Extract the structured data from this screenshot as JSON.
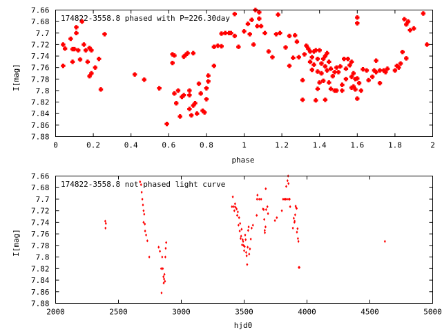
{
  "chart_data": [
    {
      "type": "scatter",
      "title": "174822-3558.8 phased with P=226.30day",
      "xlabel": "phase",
      "ylabel": "I[mag]",
      "xlim": [
        0,
        2
      ],
      "ylim": [
        7.66,
        7.88
      ],
      "y_inverted": true,
      "xticks": [
        "0",
        "0.2",
        "0.4",
        "0.6",
        "0.8",
        "1",
        "1.2",
        "1.4",
        "1.6",
        "1.8",
        "2"
      ],
      "yticks": [
        "7.66",
        "7.68",
        "7.7",
        "7.72",
        "7.74",
        "7.76",
        "7.78",
        "7.8",
        "7.82",
        "7.84",
        "7.86",
        "7.88"
      ],
      "grid": false,
      "marker": "filled-plus",
      "color": "#ff0000",
      "points": [
        [
          0.04,
          7.72
        ],
        [
          0.04,
          7.757
        ],
        [
          0.05,
          7.727
        ],
        [
          0.08,
          7.71
        ],
        [
          0.09,
          7.728
        ],
        [
          0.09,
          7.75
        ],
        [
          0.1,
          7.728
        ],
        [
          0.11,
          7.69
        ],
        [
          0.11,
          7.7
        ],
        [
          0.12,
          7.73
        ],
        [
          0.13,
          7.746
        ],
        [
          0.14,
          7.68
        ],
        [
          0.15,
          7.72
        ],
        [
          0.16,
          7.73
        ],
        [
          0.17,
          7.75
        ],
        [
          0.18,
          7.726
        ],
        [
          0.18,
          7.775
        ],
        [
          0.19,
          7.73
        ],
        [
          0.19,
          7.77
        ],
        [
          0.21,
          7.76
        ],
        [
          0.23,
          7.745
        ],
        [
          0.24,
          7.798
        ],
        [
          0.26,
          7.702
        ],
        [
          0.42,
          7.772
        ],
        [
          0.47,
          7.781
        ],
        [
          0.55,
          7.796
        ],
        [
          0.59,
          7.858
        ],
        [
          0.62,
          7.737
        ],
        [
          0.62,
          7.752
        ],
        [
          0.63,
          7.739
        ],
        [
          0.63,
          7.805
        ],
        [
          0.64,
          7.822
        ],
        [
          0.65,
          7.8
        ],
        [
          0.66,
          7.845
        ],
        [
          0.67,
          7.811
        ],
        [
          0.68,
          7.741
        ],
        [
          0.68,
          7.808
        ],
        [
          0.69,
          7.738
        ],
        [
          0.7,
          7.735
        ],
        [
          0.71,
          7.8
        ],
        [
          0.71,
          7.808
        ],
        [
          0.71,
          7.832
        ],
        [
          0.72,
          7.843
        ],
        [
          0.73,
          7.826
        ],
        [
          0.73,
          7.735
        ],
        [
          0.74,
          7.822
        ],
        [
          0.75,
          7.84
        ],
        [
          0.76,
          7.788
        ],
        [
          0.77,
          7.805
        ],
        [
          0.78,
          7.835
        ],
        [
          0.79,
          7.838
        ],
        [
          0.8,
          7.815
        ],
        [
          0.8,
          7.796
        ],
        [
          0.81,
          7.784
        ],
        [
          0.81,
          7.774
        ],
        [
          0.84,
          7.757
        ],
        [
          0.84,
          7.724
        ],
        [
          0.86,
          7.722
        ],
        [
          0.88,
          7.723
        ],
        [
          0.88,
          7.701
        ],
        [
          0.9,
          7.7
        ],
        [
          0.92,
          7.7
        ],
        [
          0.93,
          7.7
        ],
        [
          0.95,
          7.667
        ],
        [
          0.95,
          7.705
        ],
        [
          0.97,
          7.724
        ],
        [
          1.0,
          7.697
        ],
        [
          1.02,
          7.684
        ],
        [
          1.03,
          7.702
        ],
        [
          1.04,
          7.677
        ],
        [
          1.05,
          7.72
        ],
        [
          1.06,
          7.66
        ],
        [
          1.07,
          7.688
        ],
        [
          1.08,
          7.664
        ],
        [
          1.08,
          7.675
        ],
        [
          1.09,
          7.688
        ],
        [
          1.11,
          7.7
        ],
        [
          1.13,
          7.732
        ],
        [
          1.15,
          7.742
        ],
        [
          1.17,
          7.702
        ],
        [
          1.18,
          7.668
        ],
        [
          1.19,
          7.7
        ],
        [
          1.22,
          7.725
        ],
        [
          1.24,
          7.705
        ],
        [
          1.24,
          7.757
        ],
        [
          1.26,
          7.743
        ],
        [
          1.27,
          7.704
        ],
        [
          1.28,
          7.715
        ],
        [
          1.29,
          7.742
        ],
        [
          1.31,
          7.782
        ],
        [
          1.31,
          7.816
        ],
        [
          1.32,
          7.737
        ],
        [
          1.33,
          7.722
        ],
        [
          1.34,
          7.727
        ],
        [
          1.35,
          7.732
        ],
        [
          1.35,
          7.75
        ],
        [
          1.36,
          7.742
        ],
        [
          1.36,
          7.764
        ],
        [
          1.37,
          7.732
        ],
        [
          1.37,
          7.755
        ],
        [
          1.38,
          7.73
        ],
        [
          1.38,
          7.817
        ],
        [
          1.39,
          7.745
        ],
        [
          1.39,
          7.767
        ],
        [
          1.39,
          7.797
        ],
        [
          1.4,
          7.73
        ],
        [
          1.4,
          7.786
        ],
        [
          1.41,
          7.753
        ],
        [
          1.41,
          7.77
        ],
        [
          1.42,
          7.745
        ],
        [
          1.42,
          7.783
        ],
        [
          1.43,
          7.74
        ],
        [
          1.43,
          7.758
        ],
        [
          1.43,
          7.816
        ],
        [
          1.44,
          7.735
        ],
        [
          1.44,
          7.765
        ],
        [
          1.45,
          7.75
        ],
        [
          1.45,
          7.786
        ],
        [
          1.46,
          7.762
        ],
        [
          1.46,
          7.797
        ],
        [
          1.47,
          7.775
        ],
        [
          1.48,
          7.768
        ],
        [
          1.48,
          7.8
        ],
        [
          1.49,
          7.76
        ],
        [
          1.49,
          7.8
        ],
        [
          1.5,
          7.768
        ],
        [
          1.51,
          7.758
        ],
        [
          1.52,
          7.79
        ],
        [
          1.52,
          7.8
        ],
        [
          1.53,
          7.745
        ],
        [
          1.54,
          7.762
        ],
        [
          1.54,
          7.78
        ],
        [
          1.55,
          7.745
        ],
        [
          1.56,
          7.756
        ],
        [
          1.57,
          7.776
        ],
        [
          1.57,
          7.795
        ],
        [
          1.57,
          7.75
        ],
        [
          1.58,
          7.793
        ],
        [
          1.58,
          7.77
        ],
        [
          1.59,
          7.798
        ],
        [
          1.59,
          7.78
        ],
        [
          1.6,
          7.673
        ],
        [
          1.6,
          7.683
        ],
        [
          1.6,
          7.814
        ],
        [
          1.6,
          7.779
        ],
        [
          1.61,
          7.787
        ],
        [
          1.62,
          7.8
        ],
        [
          1.63,
          7.763
        ],
        [
          1.65,
          7.765
        ],
        [
          1.66,
          7.782
        ],
        [
          1.68,
          7.776
        ],
        [
          1.69,
          7.765
        ],
        [
          1.7,
          7.768
        ],
        [
          1.7,
          7.748
        ],
        [
          1.72,
          7.787
        ],
        [
          1.72,
          7.765
        ],
        [
          1.74,
          7.765
        ],
        [
          1.75,
          7.768
        ],
        [
          1.76,
          7.762
        ],
        [
          1.8,
          7.765
        ],
        [
          1.81,
          7.757
        ],
        [
          1.82,
          7.76
        ],
        [
          1.83,
          7.753
        ],
        [
          1.84,
          7.733
        ],
        [
          1.85,
          7.676
        ],
        [
          1.86,
          7.744
        ],
        [
          1.86,
          7.685
        ],
        [
          1.87,
          7.68
        ],
        [
          1.88,
          7.695
        ],
        [
          1.9,
          7.692
        ],
        [
          1.95,
          7.666
        ],
        [
          1.97,
          7.72
        ]
      ]
    },
    {
      "type": "scatter",
      "title": "174822-3558.8 not phased light curve",
      "xlabel": "hjd0",
      "ylabel": "I[mag]",
      "xlim": [
        2000,
        5000
      ],
      "ylim": [
        7.66,
        7.88
      ],
      "y_inverted": true,
      "xticks": [
        "2000",
        "2500",
        "3000",
        "3500",
        "4000",
        "4500",
        "5000"
      ],
      "yticks": [
        "7.66",
        "7.68",
        "7.7",
        "7.72",
        "7.74",
        "7.76",
        "7.78",
        "7.8",
        "7.82",
        "7.84",
        "7.86",
        "7.88"
      ],
      "grid": false,
      "marker": "small-diamond",
      "color": "#ff0000",
      "points": [
        [
          2395,
          7.738
        ],
        [
          2397,
          7.75
        ],
        [
          2400,
          7.742
        ],
        [
          2672,
          7.67
        ],
        [
          2680,
          7.675
        ],
        [
          2685,
          7.688
        ],
        [
          2690,
          7.7
        ],
        [
          2695,
          7.71
        ],
        [
          2700,
          7.72
        ],
        [
          2700,
          7.74
        ],
        [
          2705,
          7.726
        ],
        [
          2710,
          7.743
        ],
        [
          2712,
          7.755
        ],
        [
          2720,
          7.762
        ],
        [
          2730,
          7.772
        ],
        [
          2745,
          7.8
        ],
        [
          2820,
          7.783
        ],
        [
          2830,
          7.79
        ],
        [
          2840,
          7.82
        ],
        [
          2843,
          7.862
        ],
        [
          2848,
          7.8
        ],
        [
          2853,
          7.82
        ],
        [
          2858,
          7.834
        ],
        [
          2860,
          7.845
        ],
        [
          2863,
          7.838
        ],
        [
          2866,
          7.83
        ],
        [
          2870,
          7.842
        ],
        [
          2873,
          7.8
        ],
        [
          2876,
          7.785
        ],
        [
          2880,
          7.775
        ],
        [
          3403,
          7.713
        ],
        [
          3410,
          7.696
        ],
        [
          3418,
          7.713
        ],
        [
          3422,
          7.72
        ],
        [
          3428,
          7.708
        ],
        [
          3432,
          7.714
        ],
        [
          3440,
          7.717
        ],
        [
          3445,
          7.728
        ],
        [
          3450,
          7.722
        ],
        [
          3455,
          7.745
        ],
        [
          3460,
          7.732
        ],
        [
          3465,
          7.755
        ],
        [
          3468,
          7.742
        ],
        [
          3472,
          7.768
        ],
        [
          3476,
          7.764
        ],
        [
          3480,
          7.752
        ],
        [
          3484,
          7.779
        ],
        [
          3488,
          7.77
        ],
        [
          3492,
          7.773
        ],
        [
          3496,
          7.78
        ],
        [
          3500,
          7.789
        ],
        [
          3504,
          7.782
        ],
        [
          3508,
          7.762
        ],
        [
          3512,
          7.77
        ],
        [
          3516,
          7.792
        ],
        [
          3520,
          7.798
        ],
        [
          3524,
          7.813
        ],
        [
          3528,
          7.783
        ],
        [
          3532,
          7.754
        ],
        [
          3536,
          7.748
        ],
        [
          3540,
          7.795
        ],
        [
          3546,
          7.786
        ],
        [
          3553,
          7.769
        ],
        [
          3560,
          7.75
        ],
        [
          3570,
          7.745
        ],
        [
          3600,
          7.728
        ],
        [
          3603,
          7.7
        ],
        [
          3606,
          7.693
        ],
        [
          3620,
          7.7
        ],
        [
          3635,
          7.7
        ],
        [
          3650,
          7.717
        ],
        [
          3656,
          7.718
        ],
        [
          3660,
          7.735
        ],
        [
          3664,
          7.754
        ],
        [
          3665,
          7.758
        ],
        [
          3670,
          7.748
        ],
        [
          3672,
          7.682
        ],
        [
          3675,
          7.718
        ],
        [
          3685,
          7.713
        ],
        [
          3690,
          7.725
        ],
        [
          3745,
          7.737
        ],
        [
          3760,
          7.732
        ],
        [
          3800,
          7.72
        ],
        [
          3810,
          7.7
        ],
        [
          3820,
          7.7
        ],
        [
          3830,
          7.7
        ],
        [
          3835,
          7.678
        ],
        [
          3842,
          7.7
        ],
        [
          3845,
          7.668
        ],
        [
          3850,
          7.66
        ],
        [
          3853,
          7.673
        ],
        [
          3856,
          7.7
        ],
        [
          3862,
          7.7
        ],
        [
          3866,
          7.713
        ],
        [
          3888,
          7.75
        ],
        [
          3895,
          7.733
        ],
        [
          3900,
          7.74
        ],
        [
          3902,
          7.738
        ],
        [
          3906,
          7.727
        ],
        [
          3910,
          7.712
        ],
        [
          3914,
          7.715
        ],
        [
          3918,
          7.716
        ],
        [
          3920,
          7.757
        ],
        [
          3925,
          7.751
        ],
        [
          3928,
          7.768
        ],
        [
          3932,
          7.773
        ],
        [
          3935,
          7.818
        ],
        [
          3940,
          7.818
        ],
        [
          4620,
          7.773
        ]
      ]
    }
  ]
}
